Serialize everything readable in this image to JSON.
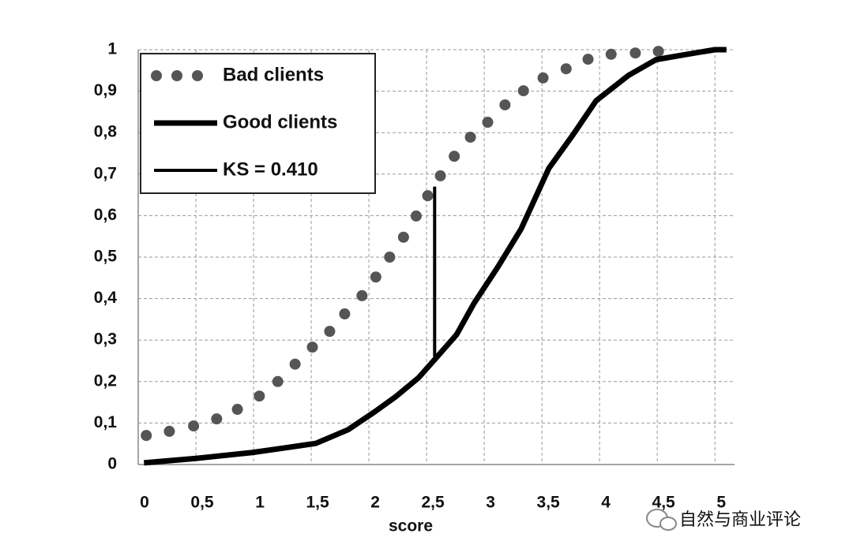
{
  "chart_data": {
    "type": "line",
    "x_label": "score",
    "xlim": [
      0,
      5.17
    ],
    "ylim": [
      0,
      1
    ],
    "xticks": [
      0,
      {
        "value": 0.5,
        "label": "0,5"
      },
      1,
      {
        "value": 1.5,
        "label": "1,5"
      },
      2,
      {
        "value": 2.5,
        "label": "2,5"
      },
      3,
      {
        "value": 3.5,
        "label": "3,5"
      },
      4,
      {
        "value": 4.5,
        "label": "4,5"
      },
      5
    ],
    "yticks": [
      0,
      {
        "value": 0.1,
        "label": "0,1"
      },
      {
        "value": 0.2,
        "label": "0,2"
      },
      {
        "value": 0.3,
        "label": "0,3"
      },
      {
        "value": 0.4,
        "label": "0,4"
      },
      {
        "value": 0.5,
        "label": "0,5"
      },
      {
        "value": 0.6,
        "label": "0,6"
      },
      {
        "value": 0.7,
        "label": "0,7"
      },
      {
        "value": 0.8,
        "label": "0,8"
      },
      {
        "value": 0.9,
        "label": "0,9"
      },
      1
    ],
    "grid": true,
    "legend": "upper left",
    "series": [
      {
        "name": "Bad clients",
        "color": "#555555",
        "style": "dots",
        "x": [
          0.07,
          0.27,
          0.48,
          0.68,
          0.86,
          1.05,
          1.21,
          1.36,
          1.51,
          1.66,
          1.79,
          1.94,
          2.06,
          2.18,
          2.3,
          2.41,
          2.51,
          2.62,
          2.74,
          2.88,
          3.03,
          3.18,
          3.34,
          3.51,
          3.71,
          3.9,
          4.1,
          4.31,
          4.51
        ],
        "values": [
          0.07,
          0.08,
          0.093,
          0.11,
          0.133,
          0.165,
          0.2,
          0.242,
          0.283,
          0.321,
          0.363,
          0.407,
          0.452,
          0.5,
          0.548,
          0.599,
          0.648,
          0.696,
          0.743,
          0.789,
          0.825,
          0.867,
          0.901,
          0.932,
          0.954,
          0.977,
          0.989,
          0.992,
          0.996
        ]
      },
      {
        "name": "Good clients",
        "color": "#000000",
        "style": "line",
        "width": 7,
        "x": [
          0.05,
          0.51,
          0.99,
          1.27,
          1.54,
          1.82,
          2.05,
          2.23,
          2.43,
          2.58,
          2.76,
          2.91,
          3.12,
          3.32,
          3.56,
          3.77,
          3.97,
          4.25,
          4.49,
          4.76,
          5.0,
          5.1
        ],
        "values": [
          0.004,
          0.015,
          0.029,
          0.04,
          0.051,
          0.084,
          0.127,
          0.163,
          0.209,
          0.256,
          0.313,
          0.388,
          0.477,
          0.568,
          0.714,
          0.795,
          0.877,
          0.938,
          0.976,
          0.989,
          1.0,
          1.0
        ]
      },
      {
        "name": "KS = 0.410",
        "color": "#000000",
        "style": "line",
        "width": 4,
        "x": [
          2.57,
          2.57
        ],
        "values": [
          0.26,
          0.67
        ]
      }
    ]
  },
  "watermark": "自然与商业评论"
}
